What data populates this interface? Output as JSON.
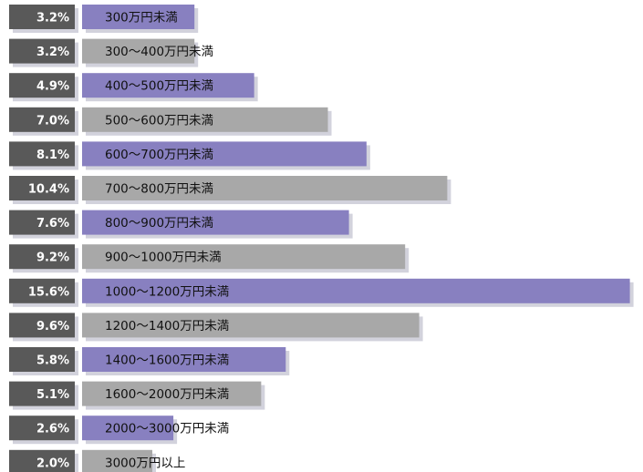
{
  "chart_data": {
    "type": "bar",
    "orientation": "horizontal",
    "unit": "%",
    "categories": [
      "300万円未満",
      "300〜400万円未満",
      "400〜500万円未満",
      "500〜600万円未満",
      "600〜700万円未満",
      "700〜800万円未満",
      "800〜900万円未満",
      "900〜1000万円未満",
      "1000〜1200万円未満",
      "1200〜1400万円未満",
      "1400〜1600万円未満",
      "1600〜2000万円未満",
      "2000〜3000万円未満",
      "3000万円以上"
    ],
    "values": [
      3.2,
      3.2,
      4.9,
      7.0,
      8.1,
      10.4,
      7.6,
      9.2,
      15.6,
      9.6,
      5.8,
      5.1,
      2.6,
      2.0
    ],
    "value_labels": [
      "3.2%",
      "3.2%",
      "4.9%",
      "7.0%",
      "8.1%",
      "10.4%",
      "7.6%",
      "9.2%",
      "15.6%",
      "9.6%",
      "5.8%",
      "5.1%",
      "2.6%",
      "2.0%"
    ],
    "title": "",
    "xlabel": "",
    "ylabel": "",
    "grid": false,
    "legend": "none",
    "colors": {
      "accent_bar": "#8880c0",
      "neutral_bar": "#a8a8a8",
      "label_box": "#595959",
      "shadow": "#d2d2dc"
    }
  }
}
